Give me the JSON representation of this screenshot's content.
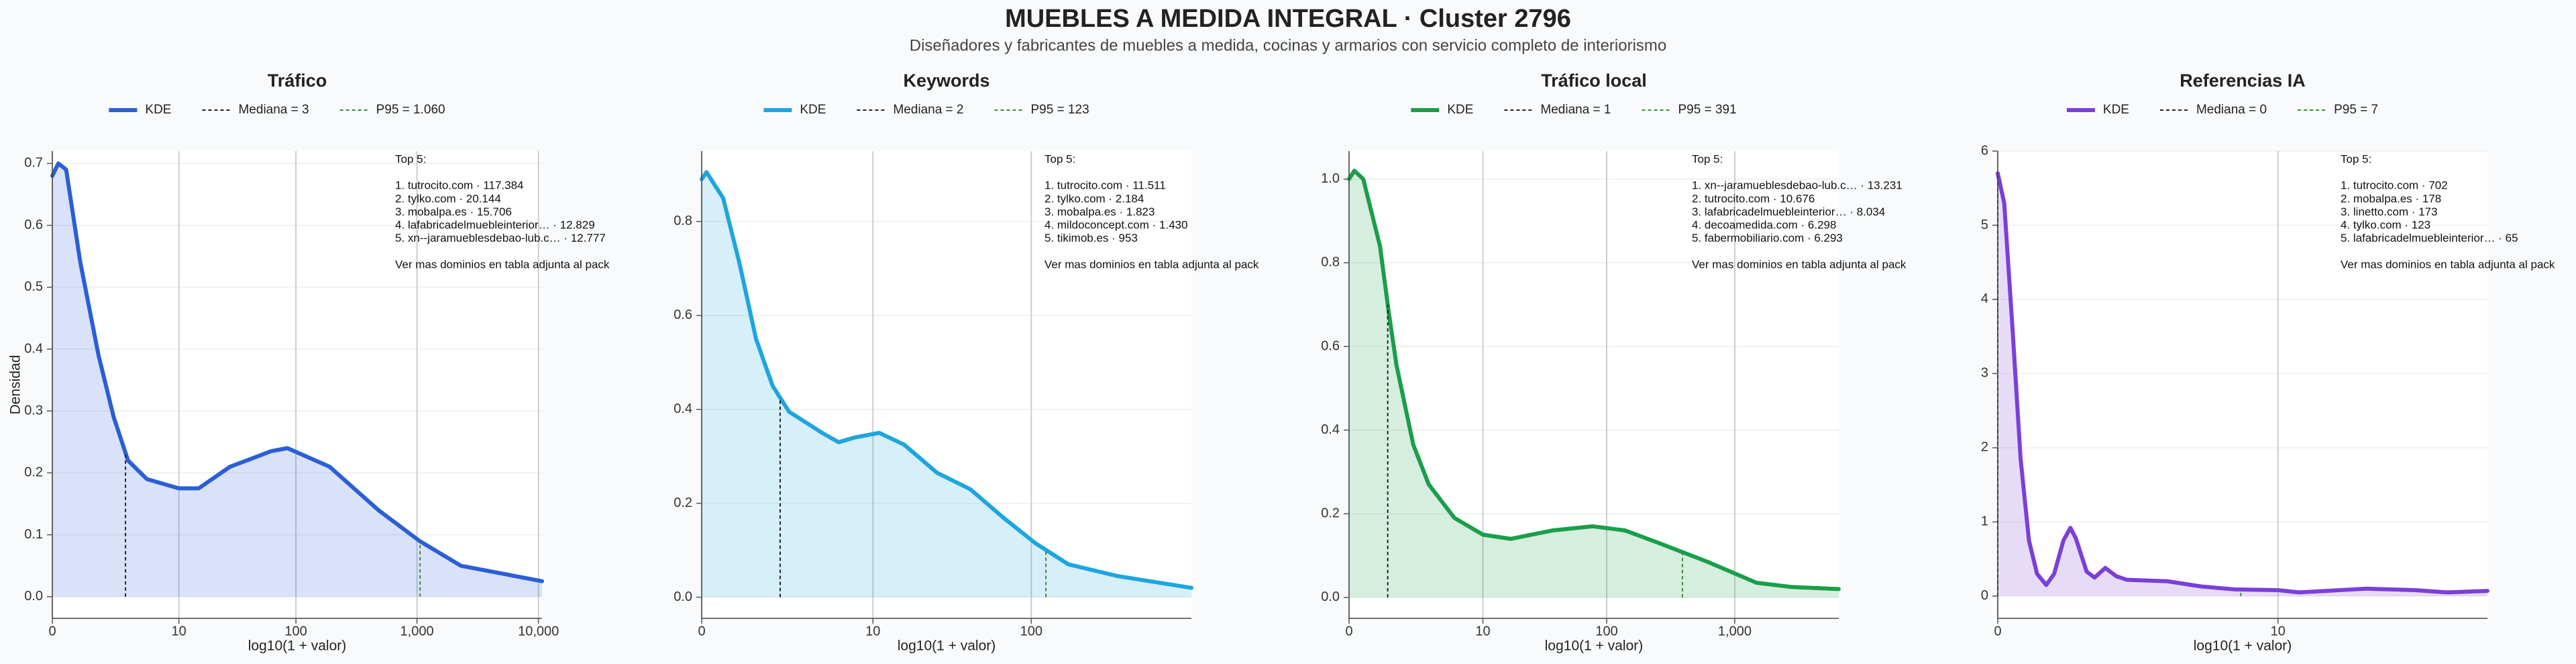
{
  "title": "MUEBLES A MEDIDA INTEGRAL · Cluster 2796",
  "subtitle": "Diseñadores y fabricantes de muebles a medida, cocinas y armarios con servicio completo de interiorismo",
  "chart_data": [
    {
      "type": "line",
      "title": "Tráfico",
      "xlabel": "log10(1 + valor)",
      "ylabel": "Densidad",
      "xscale": "log1p",
      "grid": true,
      "x": [
        0,
        0.12,
        0.3,
        0.7,
        1.4,
        2.2,
        3.2,
        5,
        10,
        15,
        28,
        62,
        85,
        190,
        480,
        1050,
        2300,
        10700
      ],
      "series": [
        {
          "name": "KDE",
          "color": "#2a5fd6",
          "values": [
            0.68,
            0.7,
            0.69,
            0.54,
            0.39,
            0.29,
            0.22,
            0.19,
            0.175,
            0.175,
            0.21,
            0.235,
            0.24,
            0.21,
            0.14,
            0.09,
            0.05,
            0.025
          ]
        }
      ],
      "median": {
        "value": 3,
        "label": "Mediana = 3",
        "color": "#222222"
      },
      "p95": {
        "value": 1060,
        "label": "P95 = 1.060",
        "color": "#3a8a3a"
      },
      "xlim": [
        0,
        10700
      ],
      "xticks": [
        0,
        10,
        100,
        {
          "value": 1000,
          "label": "1,000"
        },
        {
          "value": 10000,
          "label": "10,000"
        }
      ],
      "ylim": [
        -0.035,
        0.72
      ],
      "yticks": [
        {
          "value": 0,
          "label": "0.0"
        },
        {
          "value": 0.1,
          "label": "0.1"
        },
        {
          "value": 0.2,
          "label": "0.2"
        },
        {
          "value": 0.3,
          "label": "0.3"
        },
        {
          "value": 0.4,
          "label": "0.4"
        },
        {
          "value": 0.5,
          "label": "0.5"
        },
        {
          "value": 0.6,
          "label": "0.6"
        },
        {
          "value": 0.7,
          "label": "0.7"
        }
      ],
      "annotation": {
        "heading": "Top 5:",
        "items": [
          "1. tutrocito.com · 117.384",
          "2. tylko.com · 20.144",
          "3. mobalpa.es · 15.706",
          "4. lafabricadelmuebleinterior… · 12.829",
          "5. xn--jaramueblesdebao-lub.c… · 12.777"
        ],
        "footer": "Ver mas dominios en tabla adjunta al pack"
      }
    },
    {
      "type": "line",
      "title": "Keywords",
      "xlabel": "log10(1 + valor)",
      "xscale": "log1p",
      "grid": true,
      "x": [
        0,
        0.07,
        0.35,
        0.7,
        1.14,
        1.7,
        2.4,
        4.4,
        5.8,
        7.5,
        11,
        16,
        26,
        42,
        67,
        106,
        169,
        338,
        950
      ],
      "series": [
        {
          "name": "KDE",
          "color": "#1ea5e0",
          "values": [
            0.89,
            0.905,
            0.85,
            0.71,
            0.55,
            0.45,
            0.395,
            0.35,
            0.33,
            0.34,
            0.35,
            0.325,
            0.265,
            0.23,
            0.17,
            0.115,
            0.07,
            0.045,
            0.02
          ]
        }
      ],
      "median": {
        "value": 2,
        "label": "Mediana = 2",
        "color": "#222222"
      },
      "p95": {
        "value": 123,
        "label": "P95 = 123",
        "color": "#3a8a3a"
      },
      "xlim": [
        0,
        950
      ],
      "xticks": [
        0,
        10,
        100
      ],
      "ylim": [
        -0.045,
        0.95
      ],
      "yticks": [
        {
          "value": 0,
          "label": "0.0"
        },
        {
          "value": 0.2,
          "label": "0.2"
        },
        {
          "value": 0.4,
          "label": "0.4"
        },
        {
          "value": 0.6,
          "label": "0.6"
        },
        {
          "value": 0.8,
          "label": "0.8"
        }
      ],
      "annotation": {
        "heading": "Top 5:",
        "items": [
          "1. tutrocito.com · 11.511",
          "2. tylko.com · 2.184",
          "3. mobalpa.es · 1.823",
          "4. mildoconcept.com · 1.430",
          "5. tikimob.es · 953"
        ],
        "footer": "Ver mas dominios en tabla adjunta al pack"
      }
    },
    {
      "type": "line",
      "title": "Tráfico local",
      "xlabel": "log10(1 + valor)",
      "xscale": "log1p",
      "grid": true,
      "x": [
        0,
        0.1,
        0.29,
        0.74,
        1.04,
        1.34,
        2.16,
        3.17,
        5.6,
        10,
        17.2,
        37,
        78,
        140,
        256,
        616,
        1478,
        2753,
        6450
      ],
      "series": [
        {
          "name": "KDE",
          "color": "#1a9e4a",
          "values": [
            1.0,
            1.02,
            1.0,
            0.84,
            0.68,
            0.555,
            0.365,
            0.27,
            0.19,
            0.15,
            0.14,
            0.16,
            0.17,
            0.16,
            0.13,
            0.085,
            0.035,
            0.025,
            0.02
          ]
        }
      ],
      "median": {
        "value": 1,
        "label": "Mediana = 1",
        "color": "#222222"
      },
      "p95": {
        "value": 391,
        "label": "P95 = 391",
        "color": "#3a8a3a"
      },
      "xlim": [
        0,
        6450
      ],
      "xticks": [
        0,
        10,
        100,
        {
          "value": 1000,
          "label": "1,000"
        }
      ],
      "ylim": [
        -0.05,
        1.067
      ],
      "yticks": [
        {
          "value": 0,
          "label": "0.0"
        },
        {
          "value": 0.2,
          "label": "0.2"
        },
        {
          "value": 0.4,
          "label": "0.4"
        },
        {
          "value": 0.6,
          "label": "0.6"
        },
        {
          "value": 0.8,
          "label": "0.8"
        },
        {
          "value": 1,
          "label": "1.0"
        }
      ],
      "annotation": {
        "heading": "Top 5:",
        "items": [
          "1. xn--jaramueblesdebao-lub.c… · 13.231",
          "2. tutrocito.com · 10.676",
          "3. lafabricadelmuebleinterior… · 8.034",
          "4. decoamedida.com · 6.298",
          "5. fabermobiliario.com · 6.293"
        ],
        "footer": "Ver mas dominios en tabla adjunta al pack"
      }
    },
    {
      "type": "line",
      "title": "Referencias IA",
      "xlabel": "log10(1 + valor)",
      "xscale": "log1p",
      "grid": true,
      "x": [
        0,
        0.057,
        0.135,
        0.216,
        0.306,
        0.4,
        0.514,
        0.62,
        0.754,
        0.862,
        0.95,
        1.14,
        1.29,
        1.51,
        1.75,
        2.02,
        3.27,
        4.7,
        6.6,
        10,
        12.2,
        22.4,
        34.5,
        45.8,
        65
      ],
      "series": [
        {
          "name": "KDE",
          "color": "#7b3fd9",
          "values": [
            5.7,
            5.3,
            3.6,
            1.85,
            0.75,
            0.3,
            0.15,
            0.3,
            0.75,
            0.92,
            0.78,
            0.33,
            0.25,
            0.38,
            0.27,
            0.22,
            0.2,
            0.13,
            0.09,
            0.08,
            0.05,
            0.1,
            0.08,
            0.05,
            0.07
          ]
        }
      ],
      "median": {
        "value": 0,
        "label": "Mediana = 0",
        "color": "#222222"
      },
      "p95": {
        "value": 7,
        "label": "P95 = 7",
        "color": "#3a8a3a"
      },
      "xlim": [
        0,
        65
      ],
      "xticks": [
        0,
        10
      ],
      "ylim": [
        -0.3,
        6
      ],
      "yticks": [
        0,
        1,
        2,
        3,
        4,
        5,
        6
      ],
      "annotation": {
        "heading": "Top 5:",
        "items": [
          "1. tutrocito.com · 702",
          "2. mobalpa.es · 178",
          "3. linetto.com · 173",
          "4. tylko.com · 123",
          "5. lafabricadelmuebleinterior… · 65"
        ],
        "footer": "Ver mas dominios en tabla adjunta al pack"
      }
    }
  ]
}
